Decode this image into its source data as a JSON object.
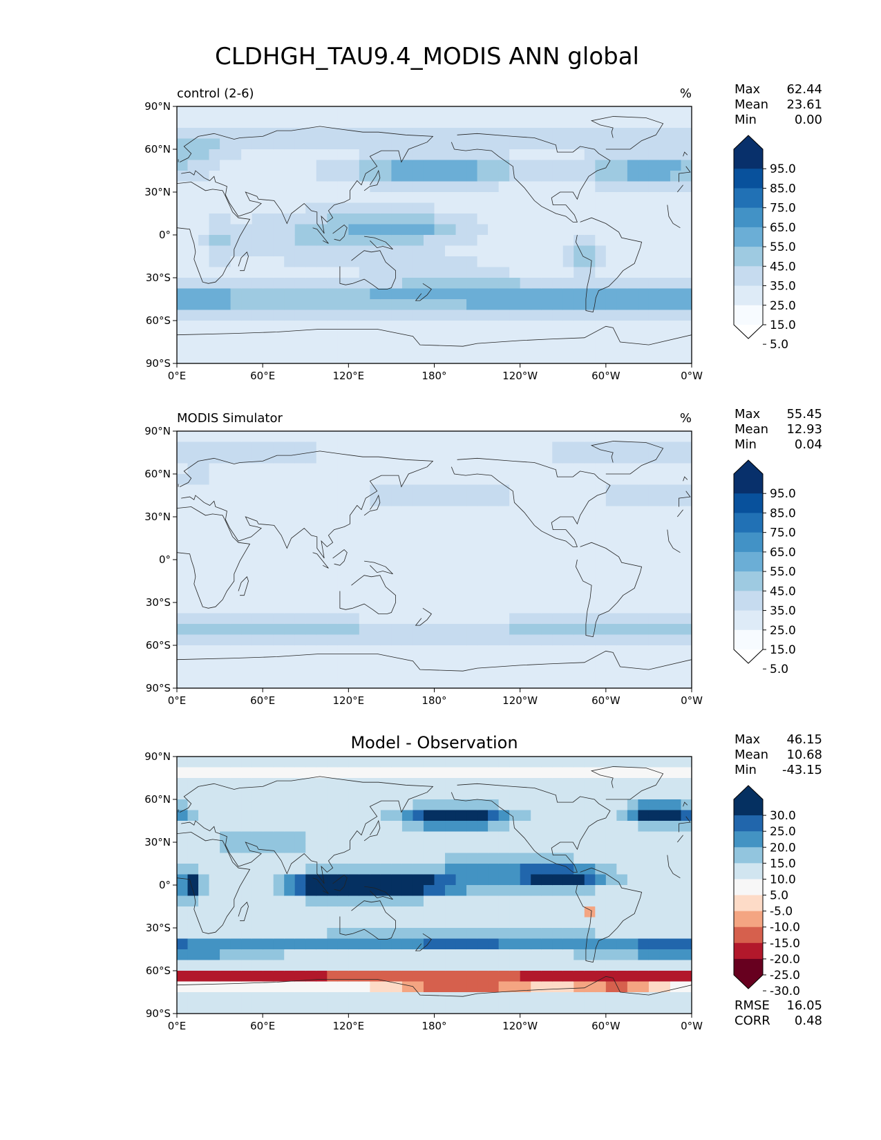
{
  "figure_title": "CLDHGH_TAU9.4_MODIS ANN global",
  "colors": {
    "blues": [
      "#f7fbff",
      "#deebf7",
      "#c6dbef",
      "#9ecae1",
      "#6baed6",
      "#4292c6",
      "#2171b5",
      "#08519c",
      "#08306b"
    ],
    "diverging": [
      "#67001f",
      "#b2182b",
      "#d6604d",
      "#f4a582",
      "#fddbc7",
      "#f7f7f7",
      "#d1e5f0",
      "#92c5de",
      "#4393c3",
      "#2166ac",
      "#053061"
    ]
  },
  "axis_ticks": {
    "lat": [
      "90°N",
      "60°N",
      "30°N",
      "0°",
      "30°S",
      "60°S",
      "90°S"
    ],
    "lon": [
      "0°E",
      "60°E",
      "120°E",
      "180°",
      "120°W",
      "60°W",
      "0°W"
    ]
  },
  "chart_data": [
    {
      "type": "heatmap",
      "title_left": "control (2-6)",
      "title_right": "%",
      "stats": [
        {
          "label": "Max",
          "value": "62.44"
        },
        {
          "label": "Mean",
          "value": "23.61"
        },
        {
          "label": "Min",
          "value": "0.00"
        }
      ],
      "colorbar_ticks": [
        "95.0",
        "85.0",
        "75.0",
        "65.0",
        "55.0",
        "45.0",
        "35.0",
        "25.0",
        "15.0",
        "5.0"
      ],
      "colorbar_scheme": "blues",
      "colorbar_bins": 11
    },
    {
      "type": "heatmap",
      "title_left": "MODIS Simulator",
      "title_right": "%",
      "stats": [
        {
          "label": "Max",
          "value": "55.45"
        },
        {
          "label": "Mean",
          "value": "12.93"
        },
        {
          "label": "Min",
          "value": "0.04"
        }
      ],
      "colorbar_ticks": [
        "95.0",
        "85.0",
        "75.0",
        "65.0",
        "55.0",
        "45.0",
        "35.0",
        "25.0",
        "15.0",
        "5.0"
      ],
      "colorbar_scheme": "blues",
      "colorbar_bins": 11
    },
    {
      "type": "heatmap",
      "title_center": "Model - Observation",
      "stats": [
        {
          "label": "Max",
          "value": "46.15"
        },
        {
          "label": "Mean",
          "value": "10.68"
        },
        {
          "label": "Min",
          "value": "-43.15"
        }
      ],
      "colorbar_ticks": [
        "30.0",
        "25.0",
        "20.0",
        "15.0",
        "10.0",
        "5.0",
        "-5.0",
        "-10.0",
        "-15.0",
        "-20.0",
        "-25.0",
        "-30.0"
      ],
      "colorbar_scheme": "diverging",
      "colorbar_bins": 13,
      "footer_stats": [
        {
          "label": "RMSE",
          "value": "16.05"
        },
        {
          "label": "CORR",
          "value": "0.48"
        }
      ]
    }
  ]
}
